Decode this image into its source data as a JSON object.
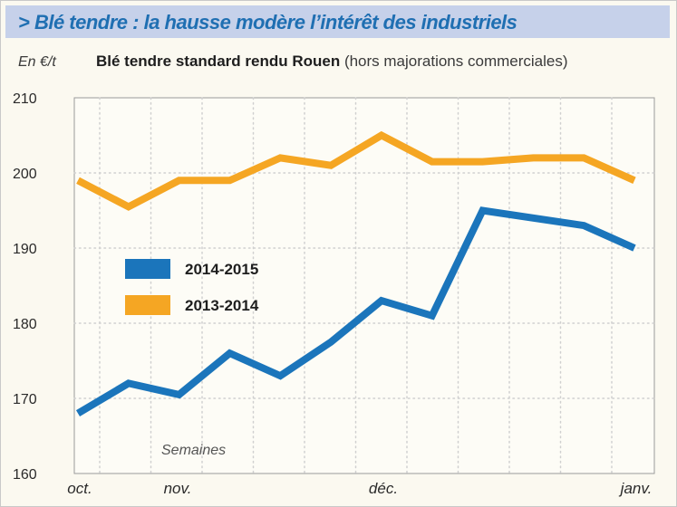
{
  "header": {
    "title": "> Blé tendre : la hausse modère l’intérêt des industriels"
  },
  "unit_label": "En €/t",
  "subtitle": {
    "main": "Blé tendre standard rendu Rouen",
    "note": "(hors majorations commerciales)"
  },
  "chart_data": {
    "type": "line",
    "title": "Blé tendre standard rendu Rouen (hors majorations commerciales)",
    "xlabel": "Semaines",
    "ylabel": "En €/t",
    "ylim": [
      160,
      210
    ],
    "yticks": [
      160,
      170,
      180,
      190,
      200,
      210
    ],
    "x_tick_labels": [
      "oct.",
      "nov.",
      "déc.",
      "janv."
    ],
    "x": [
      1,
      2,
      3,
      4,
      5,
      6,
      7,
      8,
      9,
      10,
      11,
      12
    ],
    "grid": true,
    "legend_position": "middle-left",
    "series": [
      {
        "name": "2014-2015",
        "color": "#1b75bb",
        "values": [
          168,
          172,
          170.5,
          176,
          173,
          177.5,
          183,
          181,
          195,
          194,
          193,
          190
        ]
      },
      {
        "name": "2013-2014",
        "color": "#f5a623",
        "values": [
          199,
          195.5,
          199,
          199,
          202,
          201,
          205,
          201.5,
          201.5,
          202,
          202,
          199
        ]
      }
    ]
  }
}
